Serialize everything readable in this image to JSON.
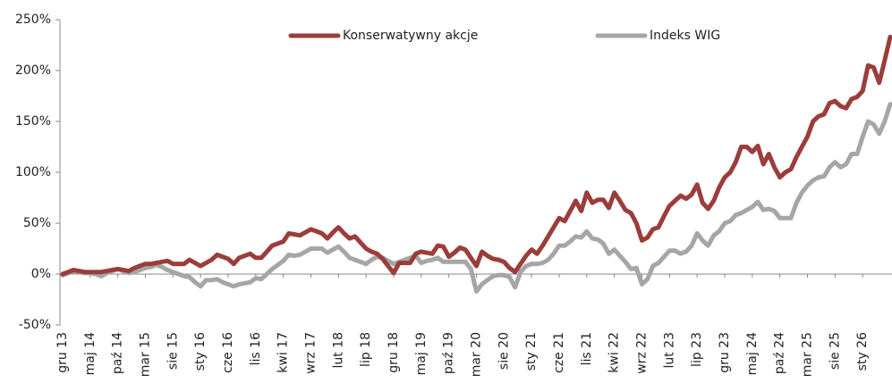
{
  "chart_data": {
    "type": "line",
    "categories": [
      "gru 13",
      null,
      null,
      null,
      null,
      "maj 14",
      null,
      null,
      null,
      null,
      "paź 14",
      null,
      null,
      null,
      null,
      "mar 15",
      null,
      null,
      null,
      null,
      "sie 15",
      null,
      null,
      null,
      null,
      "sty 16",
      null,
      null,
      null,
      null,
      "cze 16",
      null,
      null,
      null,
      null,
      "lis 16",
      null,
      null,
      null,
      null,
      "kwi 17",
      null,
      null,
      null,
      null,
      "wrz 17",
      null,
      null,
      null,
      null,
      "lut 18",
      null,
      null,
      null,
      null,
      "lip 18",
      null,
      null,
      null,
      null,
      "gru 18",
      null,
      null,
      null,
      null,
      "maj 19",
      null,
      null,
      null,
      null,
      "paź 19",
      null,
      null,
      null,
      null,
      "mar 20",
      null,
      null,
      null,
      null,
      "sie 20",
      null,
      null,
      null,
      null,
      "sty 21",
      null,
      null,
      null,
      null,
      "cze 21",
      null,
      null,
      null,
      null,
      "lis 21",
      null,
      null,
      null,
      null,
      "kwi 22",
      null,
      null,
      null,
      null,
      "wrz 22",
      null,
      null,
      null,
      null,
      "lut 23",
      null,
      null,
      null,
      null,
      "lip 23",
      null,
      null,
      null,
      null,
      "gru 23",
      null,
      null,
      null,
      null,
      "maj 24",
      null,
      null,
      null,
      null,
      "paź 24",
      null,
      null,
      null,
      null,
      "mar 25",
      null,
      null,
      null,
      null,
      "sie 25",
      null,
      null,
      null,
      null,
      "sty 26",
      null,
      null,
      null,
      null,
      null
    ],
    "series": [
      {
        "name": "Konserwatywny akcje",
        "color": "#9b3d3a",
        "values": [
          0,
          2,
          4,
          3,
          2,
          2,
          2,
          2,
          3,
          4,
          5,
          4,
          3,
          6,
          8,
          10,
          10,
          11,
          12,
          13,
          10,
          10,
          10,
          14,
          11,
          8,
          11,
          14,
          19,
          17,
          15,
          10,
          16,
          18,
          20,
          16,
          16,
          22,
          28,
          30,
          32,
          40,
          39,
          38,
          41,
          44,
          42,
          40,
          35,
          41,
          46,
          40,
          35,
          37,
          31,
          25,
          22,
          20,
          15,
          8,
          1,
          11,
          11,
          11,
          20,
          22,
          21,
          20,
          28,
          27,
          17,
          21,
          26,
          24,
          16,
          8,
          22,
          18,
          15,
          14,
          12,
          6,
          2,
          10,
          18,
          24,
          20,
          28,
          37,
          46,
          55,
          52,
          62,
          72,
          62,
          80,
          70,
          73,
          73,
          65,
          80,
          72,
          63,
          60,
          50,
          33,
          36,
          44,
          46,
          57,
          67,
          72,
          77,
          74,
          78,
          88,
          70,
          64,
          72,
          85,
          95,
          100,
          110,
          125,
          125,
          120,
          126,
          108,
          118,
          105,
          95,
          100,
          103,
          115,
          125,
          135,
          150,
          155,
          157,
          168,
          170,
          165,
          163,
          172,
          174,
          180,
          205,
          203,
          188,
          210,
          233
        ]
      },
      {
        "name": "Indeks WIG",
        "color": "#a6a6a6",
        "values": [
          -1,
          1,
          3,
          2,
          1,
          1,
          0,
          -2,
          1,
          3,
          5,
          3,
          1,
          2,
          4,
          6,
          7,
          9,
          7,
          4,
          2,
          0,
          -2,
          -3,
          -8,
          -12,
          -6,
          -6,
          -5,
          -8,
          -10,
          -12,
          -10,
          -9,
          -8,
          -4,
          -5,
          0,
          5,
          9,
          13,
          19,
          18,
          19,
          22,
          25,
          25,
          25,
          21,
          24,
          27,
          22,
          16,
          14,
          12,
          10,
          14,
          17,
          16,
          13,
          10,
          12,
          14,
          16,
          18,
          11,
          13,
          14,
          16,
          12,
          12,
          12,
          12,
          12,
          5,
          -17,
          -10,
          -6,
          -2,
          -1,
          -1,
          -3,
          -13,
          2,
          8,
          10,
          10,
          11,
          14,
          20,
          28,
          28,
          32,
          37,
          36,
          42,
          35,
          34,
          30,
          20,
          24,
          18,
          12,
          5,
          6,
          -10,
          -5,
          8,
          11,
          17,
          23,
          23,
          20,
          22,
          28,
          40,
          33,
          28,
          38,
          42,
          50,
          52,
          58,
          60,
          63,
          66,
          71,
          63,
          64,
          62,
          55,
          55,
          55,
          70,
          80,
          87,
          92,
          95,
          96,
          105,
          110,
          105,
          108,
          118,
          118,
          135,
          150,
          147,
          138,
          150,
          167
        ]
      }
    ],
    "ylim": [
      -50,
      250
    ],
    "yticks": [
      {
        "value": -50,
        "label": "-50%"
      },
      {
        "value": 0,
        "label": "0%"
      },
      {
        "value": 50,
        "label": "50%"
      },
      {
        "value": 100,
        "label": "100%"
      },
      {
        "value": 150,
        "label": "150%"
      },
      {
        "value": 200,
        "label": "200%"
      },
      {
        "value": 250,
        "label": "250%"
      }
    ],
    "grid": false,
    "legend": "top"
  }
}
